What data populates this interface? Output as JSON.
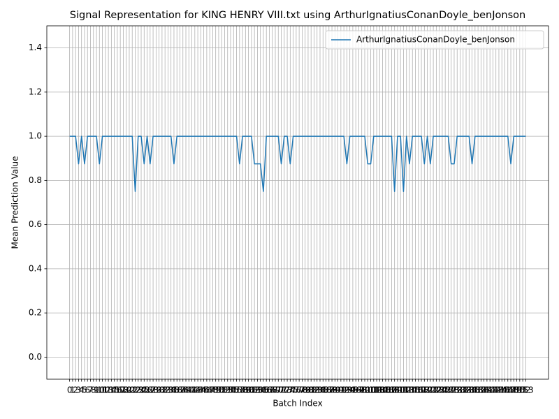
{
  "chart_data": {
    "type": "line",
    "title": "Signal Representation for KING HENRY VIII.txt using ArthurIgnatiusConanDoyle_benJonson",
    "x_label": "Batch Index",
    "y_label": "Mean Prediction Value",
    "x": [
      0,
      1,
      2,
      3,
      4,
      5,
      6,
      7,
      8,
      9,
      10,
      11,
      12,
      13,
      14,
      15,
      16,
      17,
      18,
      19,
      20,
      21,
      22,
      23,
      24,
      25,
      26,
      27,
      28,
      29,
      30,
      31,
      32,
      33,
      34,
      35,
      36,
      37,
      38,
      39,
      40,
      41,
      42,
      43,
      44,
      45,
      46,
      47,
      48,
      49,
      50,
      51,
      52,
      53,
      54,
      55,
      56,
      57,
      58,
      59,
      60,
      61,
      62,
      63,
      64,
      65,
      66,
      67,
      68,
      69,
      70,
      71,
      72,
      73,
      74,
      75,
      76,
      77,
      78,
      79,
      80,
      81,
      82,
      83,
      84,
      85,
      86,
      87,
      88,
      89,
      90,
      91,
      92,
      93,
      94,
      95,
      96,
      97,
      98,
      99,
      100,
      101,
      102,
      103,
      104,
      105,
      106,
      107,
      108,
      109,
      110,
      111,
      112,
      113,
      114,
      115,
      116,
      117,
      118,
      119,
      120,
      121,
      122,
      123,
      124,
      125,
      126,
      127,
      128,
      129,
      130,
      131,
      132,
      133,
      134,
      135,
      136,
      137,
      138,
      139,
      140,
      141,
      142,
      143,
      144,
      145,
      146,
      147,
      148,
      149,
      150,
      151,
      152,
      153
    ],
    "series": [
      {
        "name": "ArthurIgnatiusConanDoyle_benJonson",
        "color": "#1f77b4",
        "values": [
          1,
          1,
          1,
          0.875,
          1,
          0.875,
          1,
          1,
          1,
          1,
          0.875,
          1,
          1,
          1,
          1,
          1,
          1,
          1,
          1,
          1,
          1,
          1,
          0.75,
          1,
          1,
          0.875,
          1,
          0.875,
          1,
          1,
          1,
          1,
          1,
          1,
          1,
          0.875,
          1,
          1,
          1,
          1,
          1,
          1,
          1,
          1,
          1,
          1,
          1,
          1,
          1,
          1,
          1,
          1,
          1,
          1,
          1,
          1,
          1,
          0.875,
          1,
          1,
          1,
          1,
          0.875,
          0.875,
          0.875,
          0.75,
          1,
          1,
          1,
          1,
          1,
          0.875,
          1,
          1,
          0.875,
          1,
          1,
          1,
          1,
          1,
          1,
          1,
          1,
          1,
          1,
          1,
          1,
          1,
          1,
          1,
          1,
          1,
          1,
          0.875,
          1,
          1,
          1,
          1,
          1,
          1,
          0.875,
          0.875,
          1,
          1,
          1,
          1,
          1,
          1,
          1,
          0.75,
          1,
          1,
          0.75,
          1,
          0.875,
          1,
          1,
          1,
          1,
          0.875,
          1,
          0.875,
          1,
          1,
          1,
          1,
          1,
          1,
          0.875,
          0.875,
          1,
          1,
          1,
          1,
          1,
          0.875,
          1,
          1,
          1,
          1,
          1,
          1,
          1,
          1,
          1,
          1,
          1,
          1,
          0.875,
          1,
          1,
          1,
          1,
          1
        ]
      }
    ],
    "xlim": [
      -7.65,
      160.65
    ],
    "xticks": [
      0,
      1,
      2,
      3,
      4,
      5,
      6,
      7,
      8,
      9,
      10,
      11,
      12,
      13,
      14,
      15,
      16,
      17,
      18,
      19,
      20,
      21,
      22,
      23,
      24,
      25,
      26,
      27,
      28,
      29,
      30,
      31,
      32,
      33,
      34,
      35,
      36,
      37,
      38,
      39,
      40,
      41,
      42,
      43,
      44,
      45,
      46,
      47,
      48,
      49,
      50,
      51,
      52,
      53,
      54,
      55,
      56,
      57,
      58,
      59,
      60,
      61,
      62,
      63,
      64,
      65,
      66,
      67,
      68,
      69,
      70,
      71,
      72,
      73,
      74,
      75,
      76,
      77,
      78,
      79,
      80,
      81,
      82,
      83,
      84,
      85,
      86,
      87,
      88,
      89,
      90,
      91,
      92,
      93,
      94,
      95,
      96,
      97,
      98,
      99,
      100,
      101,
      102,
      103,
      104,
      105,
      106,
      107,
      108,
      109,
      110,
      111,
      112,
      113,
      114,
      115,
      116,
      117,
      118,
      119,
      120,
      121,
      122,
      123,
      124,
      125,
      126,
      127,
      128,
      129,
      130,
      131,
      132,
      133,
      134,
      135,
      136,
      137,
      138,
      139,
      140,
      141,
      142,
      143,
      144,
      145,
      146,
      147,
      148,
      149,
      150,
      151,
      152,
      153
    ],
    "ylim": [
      -0.1,
      1.5
    ],
    "yticks": [
      {
        "value": 0,
        "label": "0.0"
      },
      0.2,
      0.4,
      0.6,
      0.8,
      {
        "value": 1,
        "label": "1.0"
      },
      1.2,
      1.4
    ],
    "grid": true,
    "legend": "upper right"
  }
}
